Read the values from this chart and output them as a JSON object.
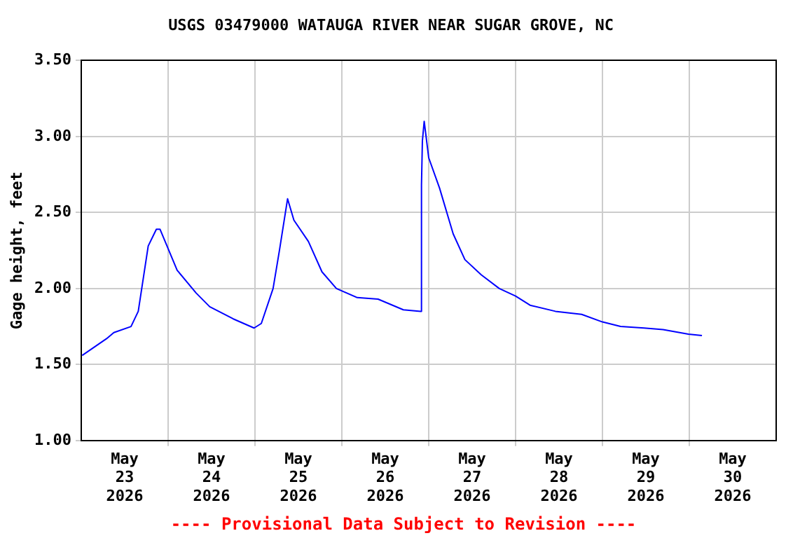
{
  "chart_data": {
    "type": "line",
    "title": "USGS 03479000 WATAUGA RIVER NEAR SUGAR GROVE, NC",
    "ylabel": "Gage height, feet",
    "annotations": [
      "---- Provisional Data Subject to Revision ----"
    ],
    "x": [
      "2026-05-23T00:15",
      "2026-05-23T07:00",
      "2026-05-23T09:00",
      "2026-05-23T13:45",
      "2026-05-23T15:45",
      "2026-05-23T18:30",
      "2026-05-23T20:45",
      "2026-05-23T21:45",
      "2026-05-24T02:30",
      "2026-05-24T07:45",
      "2026-05-24T11:30",
      "2026-05-24T18:00",
      "2026-05-24T23:45",
      "2026-05-25T01:45",
      "2026-05-25T05:00",
      "2026-05-25T06:45",
      "2026-05-25T09:00",
      "2026-05-25T10:45",
      "2026-05-25T14:45",
      "2026-05-25T18:30",
      "2026-05-25T22:30",
      "2026-05-26T04:15",
      "2026-05-26T10:00",
      "2026-05-26T17:00",
      "2026-05-26T21:45",
      "2026-05-26T22:00",
      "2026-05-26T22:15",
      "2026-05-26T22:45",
      "2026-05-27T00:00",
      "2026-05-27T03:00",
      "2026-05-27T06:45",
      "2026-05-27T10:00",
      "2026-05-27T14:30",
      "2026-05-27T19:30",
      "2026-05-28T00:00",
      "2026-05-28T04:00",
      "2026-05-28T11:00",
      "2026-05-28T18:15",
      "2026-05-29T00:00",
      "2026-05-29T05:00",
      "2026-05-29T11:30",
      "2026-05-29T16:45",
      "2026-05-29T23:45",
      "2026-05-30T03:30"
    ],
    "series": [
      {
        "color": "#0000ff",
        "values": [
          1.56,
          1.67,
          1.71,
          1.75,
          1.85,
          2.28,
          2.39,
          2.39,
          2.12,
          1.97,
          1.88,
          1.8,
          1.74,
          1.77,
          2.0,
          2.25,
          2.59,
          2.45,
          2.31,
          2.11,
          2.0,
          1.94,
          1.93,
          1.86,
          1.85,
          2.68,
          2.97,
          3.1,
          2.86,
          2.66,
          2.36,
          2.19,
          2.09,
          2.0,
          1.95,
          1.89,
          1.85,
          1.83,
          1.78,
          1.75,
          1.74,
          1.73,
          1.7,
          1.69
        ]
      }
    ],
    "xlim": [
      "2026-05-23",
      "2026-05-31"
    ],
    "xticks": [
      {
        "value": "2026-05-23T12:00",
        "label": "May 23 2026"
      },
      {
        "value": "2026-05-24",
        "label": null
      },
      {
        "value": "2026-05-24T12:00",
        "label": "May 24 2026"
      },
      {
        "value": "2026-05-25",
        "label": null
      },
      {
        "value": "2026-05-25T12:00",
        "label": "May 25 2026"
      },
      {
        "value": "2026-05-26",
        "label": null
      },
      {
        "value": "2026-05-26T12:00",
        "label": "May 26 2026"
      },
      {
        "value": "2026-05-27",
        "label": null
      },
      {
        "value": "2026-05-27T12:00",
        "label": "May 27 2026"
      },
      {
        "value": "2026-05-28",
        "label": null
      },
      {
        "value": "2026-05-28T12:00",
        "label": "May 28 2026"
      },
      {
        "value": "2026-05-29",
        "label": null
      },
      {
        "value": "2026-05-29T12:00",
        "label": "May 29 2026"
      },
      {
        "value": "2026-05-30",
        "label": null
      },
      {
        "value": "2026-05-30T12:00",
        "label": "May 30 2026"
      }
    ],
    "ylim": [
      1,
      3.5
    ],
    "yticks": [
      {
        "value": 1,
        "label": "1.00"
      },
      {
        "value": 1.5,
        "label": "1.50"
      },
      {
        "value": 2,
        "label": "2.00"
      },
      {
        "value": 2.5,
        "label": "2.50"
      },
      {
        "value": 3,
        "label": "3.00"
      },
      {
        "value": 3.5,
        "label": "3.50"
      }
    ],
    "grid": true,
    "legend": false,
    "marker": "none",
    "line_style": "solid"
  }
}
